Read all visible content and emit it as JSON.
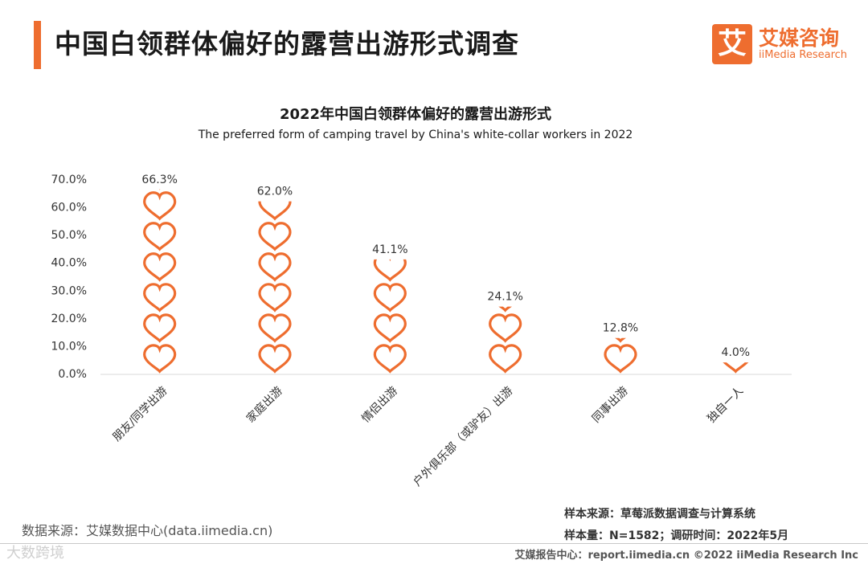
{
  "header": {
    "title": "中国白领群体偏好的露营出游形式调查"
  },
  "logo": {
    "mark": "艾",
    "cn": "艾媒咨询",
    "en": "iiMedia Research"
  },
  "chart_data": {
    "type": "bar",
    "title": "2022年中国白领群体偏好的露营出游形式",
    "subtitle": "The preferred form of camping travel by China's white-collar workers in 2022",
    "categories": [
      "朋友/同学出游",
      "家庭出游",
      "情侣出游",
      "户外俱乐部（或驴友）出游",
      "同事出游",
      "独自一人"
    ],
    "values": [
      66.3,
      62.0,
      41.1,
      24.1,
      12.8,
      4.0
    ],
    "value_labels": [
      "66.3%",
      "62.0%",
      "41.1%",
      "24.1%",
      "12.8%",
      "4.0%"
    ],
    "yticks": [
      "0.0%",
      "10.0%",
      "20.0%",
      "30.0%",
      "40.0%",
      "50.0%",
      "60.0%",
      "70.0%"
    ],
    "ylim": [
      0,
      70
    ],
    "xlabel": "",
    "ylabel": "",
    "unit_per_icon": 11.0,
    "mark": "heart-icon",
    "color": "#ee6d2f"
  },
  "footer": {
    "data_source": "数据来源：艾媒数据中心(data.iimedia.cn)",
    "sample_source": "样本来源：草莓派数据调查与计算系统",
    "sample_size": "样本量：N=1582；调研时间：2022年5月",
    "copyright": "艾媒报告中心：report.iimedia.cn  ©2022  iiMedia Research  Inc",
    "watermark": "大数跨境"
  }
}
